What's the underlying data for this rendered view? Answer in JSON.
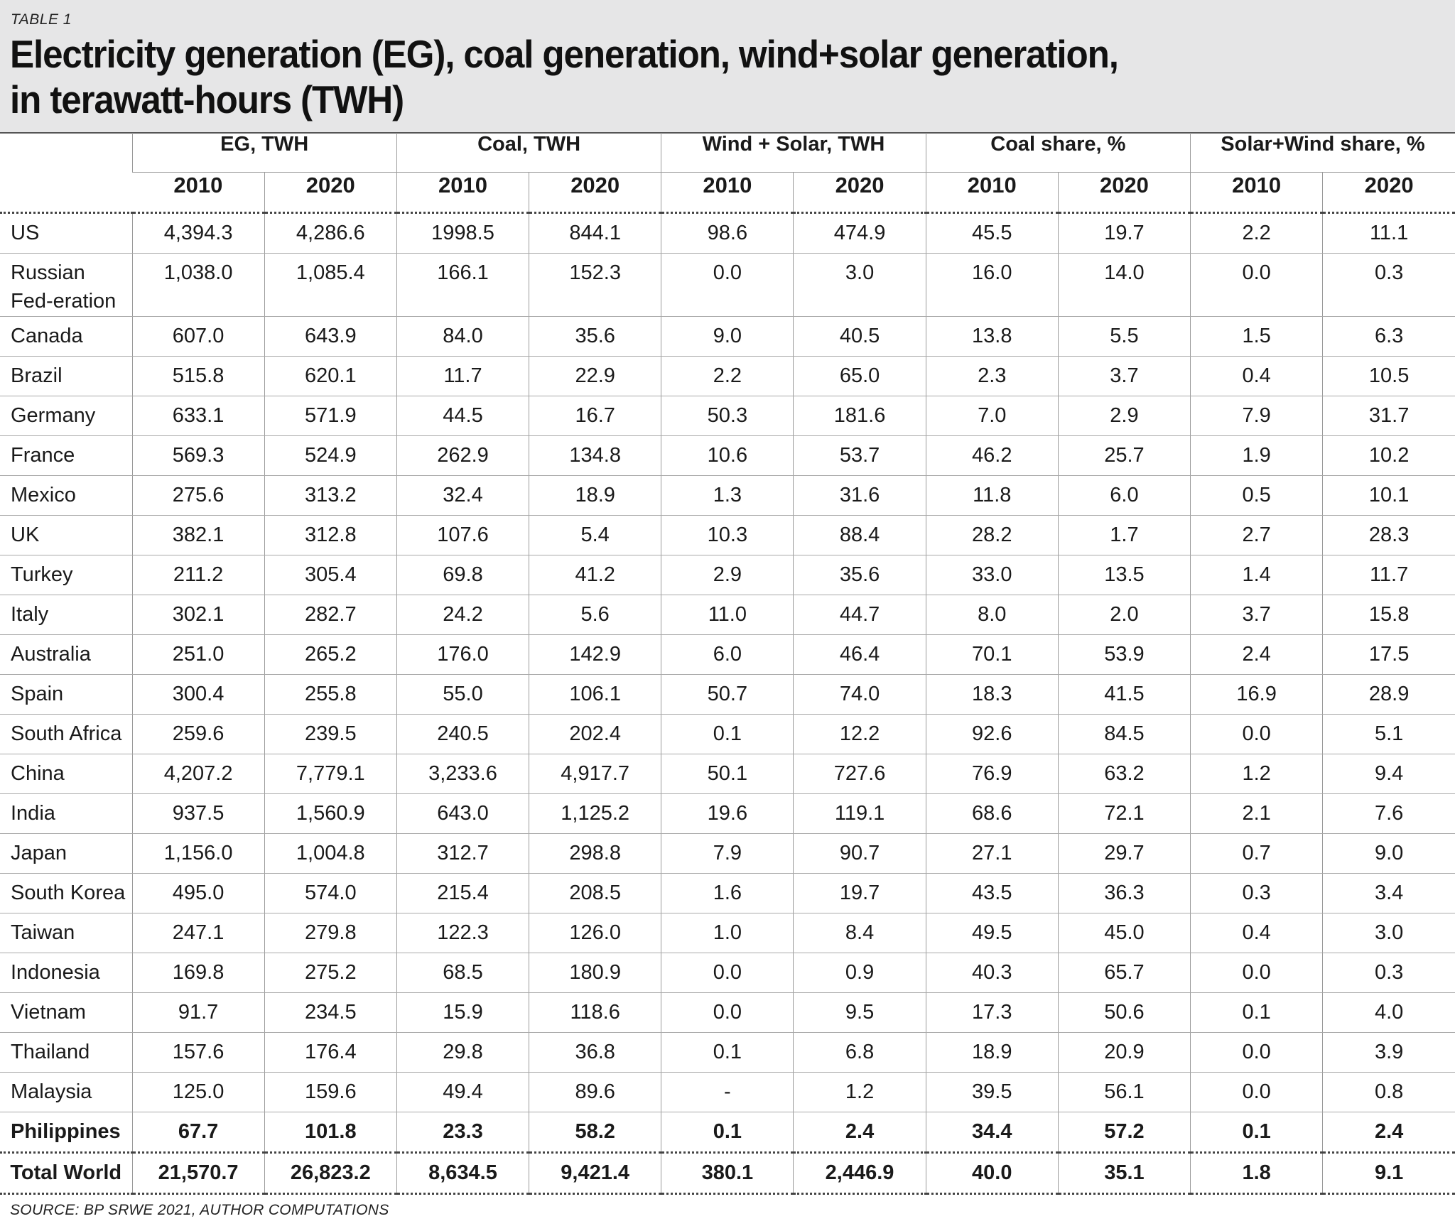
{
  "header": {
    "table_label": "TABLE 1",
    "title_line1": "Electricity generation (EG), coal generation, wind+solar generation,",
    "title_line2": "in terawatt-hours (TWH)"
  },
  "columns": {
    "groups": [
      "EG, TWH",
      "Coal, TWH",
      "Wind + Solar, TWH",
      "Coal share, %",
      "Solar+Wind share, %"
    ],
    "years": [
      "2010",
      "2020",
      "2010",
      "2020",
      "2010",
      "2020",
      "2010",
      "2020",
      "2010",
      "2020"
    ]
  },
  "rows": [
    {
      "country": "US",
      "values": [
        "4,394.3",
        "4,286.6",
        "1998.5",
        "844.1",
        "98.6",
        "474.9",
        "45.5",
        "19.7",
        "2.2",
        "11.1"
      ]
    },
    {
      "country": "Russian Fed-eration",
      "values": [
        "1,038.0",
        "1,085.4",
        "166.1",
        "152.3",
        "0.0",
        "3.0",
        "16.0",
        "14.0",
        "0.0",
        "0.3"
      ]
    },
    {
      "country": "Canada",
      "values": [
        "607.0",
        "643.9",
        "84.0",
        "35.6",
        "9.0",
        "40.5",
        "13.8",
        "5.5",
        "1.5",
        "6.3"
      ]
    },
    {
      "country": "Brazil",
      "values": [
        "515.8",
        "620.1",
        "11.7",
        "22.9",
        "2.2",
        "65.0",
        "2.3",
        "3.7",
        "0.4",
        "10.5"
      ]
    },
    {
      "country": "Germany",
      "values": [
        "633.1",
        "571.9",
        "44.5",
        "16.7",
        "50.3",
        "181.6",
        "7.0",
        "2.9",
        "7.9",
        "31.7"
      ]
    },
    {
      "country": "France",
      "values": [
        "569.3",
        "524.9",
        "262.9",
        "134.8",
        "10.6",
        "53.7",
        "46.2",
        "25.7",
        "1.9",
        "10.2"
      ]
    },
    {
      "country": "Mexico",
      "values": [
        "275.6",
        "313.2",
        "32.4",
        "18.9",
        "1.3",
        "31.6",
        "11.8",
        "6.0",
        "0.5",
        "10.1"
      ]
    },
    {
      "country": "UK",
      "values": [
        "382.1",
        "312.8",
        "107.6",
        "5.4",
        "10.3",
        "88.4",
        "28.2",
        "1.7",
        "2.7",
        "28.3"
      ]
    },
    {
      "country": "Turkey",
      "values": [
        "211.2",
        "305.4",
        "69.8",
        "41.2",
        "2.9",
        "35.6",
        "33.0",
        "13.5",
        "1.4",
        "11.7"
      ]
    },
    {
      "country": "Italy",
      "values": [
        "302.1",
        "282.7",
        "24.2",
        "5.6",
        "11.0",
        "44.7",
        "8.0",
        "2.0",
        "3.7",
        "15.8"
      ]
    },
    {
      "country": "Australia",
      "values": [
        "251.0",
        "265.2",
        "176.0",
        "142.9",
        "6.0",
        "46.4",
        "70.1",
        "53.9",
        "2.4",
        "17.5"
      ]
    },
    {
      "country": "Spain",
      "values": [
        "300.4",
        "255.8",
        "55.0",
        "106.1",
        "50.7",
        "74.0",
        "18.3",
        "41.5",
        "16.9",
        "28.9"
      ]
    },
    {
      "country": "South Africa",
      "values": [
        "259.6",
        "239.5",
        "240.5",
        "202.4",
        "0.1",
        "12.2",
        "92.6",
        "84.5",
        "0.0",
        "5.1"
      ]
    },
    {
      "country": "China",
      "values": [
        "4,207.2",
        "7,779.1",
        "3,233.6",
        "4,917.7",
        "50.1",
        "727.6",
        "76.9",
        "63.2",
        "1.2",
        "9.4"
      ]
    },
    {
      "country": "India",
      "values": [
        "937.5",
        "1,560.9",
        "643.0",
        "1,125.2",
        "19.6",
        "119.1",
        "68.6",
        "72.1",
        "2.1",
        "7.6"
      ]
    },
    {
      "country": "Japan",
      "values": [
        "1,156.0",
        "1,004.8",
        "312.7",
        "298.8",
        "7.9",
        "90.7",
        "27.1",
        "29.7",
        "0.7",
        "9.0"
      ]
    },
    {
      "country": "South Korea",
      "values": [
        "495.0",
        "574.0",
        "215.4",
        "208.5",
        "1.6",
        "19.7",
        "43.5",
        "36.3",
        "0.3",
        "3.4"
      ]
    },
    {
      "country": "Taiwan",
      "values": [
        "247.1",
        "279.8",
        "122.3",
        "126.0",
        "1.0",
        "8.4",
        "49.5",
        "45.0",
        "0.4",
        "3.0"
      ]
    },
    {
      "country": "Indonesia",
      "values": [
        "169.8",
        "275.2",
        "68.5",
        "180.9",
        "0.0",
        "0.9",
        "40.3",
        "65.7",
        "0.0",
        "0.3"
      ]
    },
    {
      "country": "Vietnam",
      "values": [
        "91.7",
        "234.5",
        "15.9",
        "118.6",
        "0.0",
        "9.5",
        "17.3",
        "50.6",
        "0.1",
        "4.0"
      ]
    },
    {
      "country": "Thailand",
      "values": [
        "157.6",
        "176.4",
        "29.8",
        "36.8",
        "0.1",
        "6.8",
        "18.9",
        "20.9",
        "0.0",
        "3.9"
      ]
    },
    {
      "country": "Malaysia",
      "values": [
        "125.0",
        "159.6",
        "49.4",
        "89.6",
        "-",
        "1.2",
        "39.5",
        "56.1",
        "0.0",
        "0.8"
      ]
    },
    {
      "country": "Philippines",
      "values": [
        "67.7",
        "101.8",
        "23.3",
        "58.2",
        "0.1",
        "2.4",
        "34.4",
        "57.2",
        "0.1",
        "2.4"
      ]
    }
  ],
  "total": {
    "country": "Total World",
    "values": [
      "21,570.7",
      "26,823.2",
      "8,634.5",
      "9,421.4",
      "380.1",
      "2,446.9",
      "40.0",
      "35.1",
      "1.8",
      "9.1"
    ]
  },
  "source": "SOURCE: BP SRWE 2021, AUTHOR COMPUTATIONS"
}
